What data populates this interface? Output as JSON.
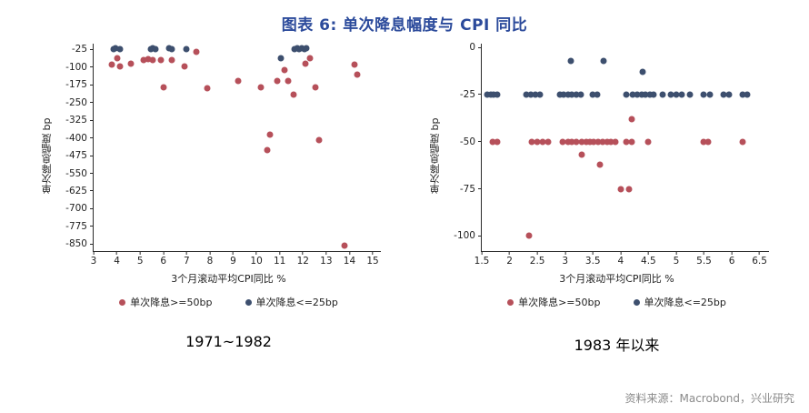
{
  "title": "图表 6: 单次降息幅度与 CPI 同比",
  "source": "资料来源：Macrobond，兴业研究",
  "colors": {
    "red": "#b6505a",
    "navy": "#3d4f6e",
    "title": "#2b4a9b",
    "axis": "#2a2a2a"
  },
  "chart_data": [
    {
      "type": "scatter",
      "caption": "1971~1982",
      "xlabel": "3个月滚动平均CPI同比 %",
      "ylabel": "单次降息幅度 bp",
      "xlim": [
        3,
        15.35
      ],
      "ylim": [
        -880,
        0
      ],
      "xticks": [
        3,
        4,
        5,
        6,
        7,
        8,
        9,
        10,
        11,
        12,
        13,
        14,
        15
      ],
      "yticks": [
        -25,
        -100,
        -175,
        -250,
        -325,
        -400,
        -475,
        -550,
        -625,
        -700,
        -775,
        -850
      ],
      "legend": [
        {
          "label": "单次降息>=50bp",
          "color": "red"
        },
        {
          "label": "单次降息<=25bp",
          "color": "navy"
        }
      ],
      "series": [
        {
          "name": "单次降息>=50bp",
          "color": "red",
          "points": [
            [
              3.8,
              -90
            ],
            [
              4.0,
              -60
            ],
            [
              4.15,
              -95
            ],
            [
              4.6,
              -85
            ],
            [
              5.15,
              -70
            ],
            [
              5.35,
              -65
            ],
            [
              5.55,
              -70
            ],
            [
              5.9,
              -70
            ],
            [
              6.0,
              -185
            ],
            [
              6.35,
              -70
            ],
            [
              6.9,
              -95
            ],
            [
              7.4,
              -35
            ],
            [
              7.9,
              -190
            ],
            [
              9.2,
              -160
            ],
            [
              10.2,
              -185
            ],
            [
              10.45,
              -450
            ],
            [
              10.6,
              -385
            ],
            [
              10.9,
              -160
            ],
            [
              11.2,
              -110
            ],
            [
              11.35,
              -160
            ],
            [
              11.6,
              -215
            ],
            [
              12.1,
              -85
            ],
            [
              12.3,
              -60
            ],
            [
              12.55,
              -185
            ],
            [
              12.7,
              -410
            ],
            [
              13.8,
              -855
            ],
            [
              14.2,
              -90
            ],
            [
              14.35,
              -130
            ]
          ]
        },
        {
          "name": "单次降息<=25bp",
          "color": "navy",
          "points": [
            [
              3.85,
              -25
            ],
            [
              3.95,
              -20
            ],
            [
              4.15,
              -25
            ],
            [
              5.45,
              -25
            ],
            [
              5.55,
              -20
            ],
            [
              5.65,
              -25
            ],
            [
              6.25,
              -20
            ],
            [
              6.35,
              -25
            ],
            [
              7.0,
              -25
            ],
            [
              11.05,
              -60
            ],
            [
              11.65,
              -25
            ],
            [
              11.75,
              -20
            ],
            [
              11.85,
              -25
            ],
            [
              11.95,
              -20
            ],
            [
              12.05,
              -25
            ],
            [
              12.15,
              -20
            ]
          ]
        }
      ]
    },
    {
      "type": "scatter",
      "caption": "1983 年以来",
      "xlabel": "3个月滚动平均CPI同比 %",
      "ylabel": "单次降息幅度 bp",
      "xlim": [
        1.5,
        6.67
      ],
      "ylim": [
        -108,
        2
      ],
      "xticks": [
        1.5,
        2,
        2.5,
        3,
        3.5,
        4,
        4.5,
        5,
        5.5,
        6,
        6.5
      ],
      "yticks": [
        0,
        -25,
        -50,
        -75,
        -100
      ],
      "legend": [
        {
          "label": "单次降息>=50bp",
          "color": "red"
        },
        {
          "label": "单次降息<=25bp",
          "color": "navy"
        }
      ],
      "series": [
        {
          "name": "单次降息>=50bp",
          "color": "red",
          "points": [
            [
              1.7,
              -50
            ],
            [
              1.78,
              -50
            ],
            [
              2.4,
              -50
            ],
            [
              2.5,
              -50
            ],
            [
              2.6,
              -50
            ],
            [
              2.7,
              -50
            ],
            [
              2.95,
              -50
            ],
            [
              3.05,
              -50
            ],
            [
              3.12,
              -50
            ],
            [
              3.2,
              -50
            ],
            [
              3.3,
              -50
            ],
            [
              3.38,
              -50
            ],
            [
              3.45,
              -50
            ],
            [
              3.52,
              -50
            ],
            [
              3.6,
              -50
            ],
            [
              3.68,
              -50
            ],
            [
              3.75,
              -50
            ],
            [
              3.82,
              -50
            ],
            [
              3.9,
              -50
            ],
            [
              4.1,
              -50
            ],
            [
              4.2,
              -50
            ],
            [
              4.5,
              -50
            ],
            [
              5.5,
              -50
            ],
            [
              5.58,
              -50
            ],
            [
              6.2,
              -50
            ],
            [
              2.35,
              -100
            ],
            [
              3.3,
              -57
            ],
            [
              3.62,
              -62
            ],
            [
              4.0,
              -75
            ],
            [
              4.15,
              -75
            ],
            [
              4.2,
              -38
            ]
          ]
        },
        {
          "name": "单次降息<=25bp",
          "color": "navy",
          "points": [
            [
              1.6,
              -25
            ],
            [
              1.66,
              -25
            ],
            [
              1.72,
              -25
            ],
            [
              1.78,
              -25
            ],
            [
              2.3,
              -25
            ],
            [
              2.38,
              -25
            ],
            [
              2.46,
              -25
            ],
            [
              2.55,
              -25
            ],
            [
              2.9,
              -25
            ],
            [
              2.98,
              -25
            ],
            [
              3.05,
              -25
            ],
            [
              3.12,
              -25
            ],
            [
              3.2,
              -25
            ],
            [
              3.28,
              -25
            ],
            [
              3.5,
              -25
            ],
            [
              3.58,
              -25
            ],
            [
              4.1,
              -25
            ],
            [
              4.22,
              -25
            ],
            [
              4.3,
              -25
            ],
            [
              4.38,
              -25
            ],
            [
              4.45,
              -25
            ],
            [
              4.52,
              -25
            ],
            [
              4.6,
              -25
            ],
            [
              4.75,
              -25
            ],
            [
              4.9,
              -25
            ],
            [
              5.0,
              -25
            ],
            [
              5.1,
              -25
            ],
            [
              5.25,
              -25
            ],
            [
              5.5,
              -25
            ],
            [
              5.6,
              -25
            ],
            [
              5.85,
              -25
            ],
            [
              5.95,
              -25
            ],
            [
              6.2,
              -25
            ],
            [
              6.28,
              -25
            ],
            [
              3.1,
              -7
            ],
            [
              3.7,
              -7
            ],
            [
              4.4,
              -13
            ]
          ]
        }
      ]
    }
  ]
}
